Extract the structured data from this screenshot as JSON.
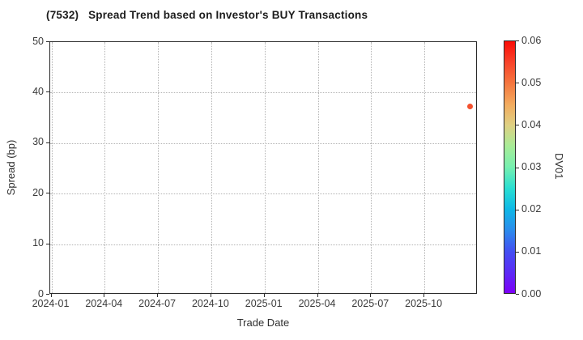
{
  "chart_data": {
    "type": "scatter",
    "title": "(7532)   Spread Trend based on Investor's BUY Transactions",
    "xlabel": "Trade Date",
    "ylabel": "Spread (bp)",
    "x_ticks": [
      "2024-01",
      "2024-04",
      "2024-07",
      "2024-10",
      "2025-01",
      "2025-04",
      "2025-07",
      "2025-10"
    ],
    "y_ticks": [
      0,
      10,
      20,
      30,
      40,
      50
    ],
    "ylim": [
      0,
      50
    ],
    "xlim": [
      "2024-01",
      "2026-01"
    ],
    "grid": true,
    "points": [
      {
        "date": "2025-12-18",
        "spread_bp": 37.2,
        "dv01": 0.05,
        "color": "#f4512e"
      }
    ],
    "colorbar": {
      "label": "DV01",
      "range": [
        0,
        0.06
      ],
      "ticks": [
        "0.00",
        "0.01",
        "0.02",
        "0.03",
        "0.04",
        "0.05",
        "0.06"
      ],
      "colormap": "rainbow",
      "gradient_stops": [
        "#7c00f8",
        "#5b2bf5",
        "#4350f2",
        "#2b8cec",
        "#0fb8e6",
        "#2adfd2",
        "#76f0b0",
        "#a8ec97",
        "#dfd083",
        "#f3ab5e",
        "#f5763f",
        "#f8432a",
        "#fb0d07"
      ]
    }
  },
  "colors": {
    "axis": "#2b2b2b",
    "grid": "#b3b3b3",
    "tick_text": "#3a3a3a",
    "title_text": "#1c1c1c",
    "background": "#ffffff"
  }
}
